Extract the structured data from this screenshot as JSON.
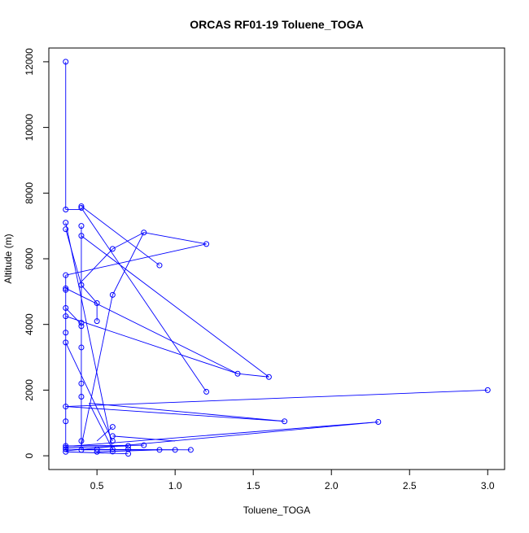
{
  "chart_data": {
    "type": "line",
    "title": "ORCAS RF01-19 Toluene_TOGA",
    "xlabel": "Toluene_TOGA",
    "ylabel": "Altitude (m)",
    "xlim": [
      0.3,
      3.0
    ],
    "ylim": [
      0,
      12000
    ],
    "x_ticks": [
      "0.5",
      "1.0",
      "1.5",
      "2.0",
      "2.5",
      "3.0"
    ],
    "y_ticks": [
      "0",
      "2000",
      "4000",
      "6000",
      "8000",
      "10000",
      "12000"
    ],
    "grid": false,
    "legend": "none",
    "markers": "open-circle",
    "color": "#0000ff",
    "series": [
      {
        "points": [
          [
            0.3,
            12000
          ],
          [
            0.3,
            7500
          ],
          [
            0.3,
            7100
          ],
          [
            0.3,
            6900
          ],
          [
            0.3,
            5500
          ],
          [
            0.3,
            5100
          ],
          [
            0.3,
            5050
          ],
          [
            0.3,
            4500
          ],
          [
            0.3,
            4250
          ],
          [
            0.3,
            3750
          ],
          [
            0.3,
            3450
          ],
          [
            0.3,
            1500
          ],
          [
            0.3,
            1050
          ],
          [
            0.3,
            300
          ],
          [
            0.3,
            250
          ],
          [
            0.3,
            200
          ],
          [
            0.3,
            120
          ],
          [
            0.4,
            180
          ],
          [
            0.4,
            450
          ],
          [
            0.4,
            1800
          ],
          [
            0.4,
            2200
          ],
          [
            0.4,
            3300
          ],
          [
            0.4,
            3950
          ],
          [
            0.4,
            4050
          ],
          [
            0.4,
            5200
          ],
          [
            0.4,
            6700
          ],
          [
            0.4,
            7000
          ],
          [
            0.4,
            7550
          ],
          [
            0.4,
            7600
          ],
          [
            0.5,
            4650
          ],
          [
            0.5,
            4100
          ],
          [
            0.5,
            200
          ],
          [
            0.5,
            120
          ],
          [
            0.6,
            4900
          ],
          [
            0.6,
            6300
          ],
          [
            0.6,
            880
          ],
          [
            0.6,
            600
          ],
          [
            0.6,
            450
          ],
          [
            0.6,
            200
          ],
          [
            0.6,
            130
          ],
          [
            0.7,
            300
          ],
          [
            0.7,
            200
          ],
          [
            0.7,
            60
          ],
          [
            0.8,
            6800
          ],
          [
            0.8,
            320
          ],
          [
            0.9,
            5800
          ],
          [
            0.9,
            180
          ],
          [
            1.0,
            180
          ],
          [
            1.1,
            180
          ],
          [
            1.2,
            6450
          ],
          [
            1.2,
            1950
          ],
          [
            1.4,
            2500
          ],
          [
            1.6,
            2400
          ],
          [
            1.7,
            1050
          ],
          [
            2.3,
            1030
          ],
          [
            3.0,
            2000
          ]
        ],
        "segments": [
          [
            [
              0.3,
              12000
            ],
            [
              0.3,
              7500
            ]
          ],
          [
            [
              0.3,
              7500
            ],
            [
              0.4,
              7500
            ]
          ],
          [
            [
              0.4,
              7600
            ],
            [
              0.9,
              5800
            ]
          ],
          [
            [
              0.4,
              7550
            ],
            [
              1.2,
              1950
            ]
          ],
          [
            [
              0.4,
              7000
            ],
            [
              0.4,
              4050
            ]
          ],
          [
            [
              0.4,
              6700
            ],
            [
              1.6,
              2400
            ]
          ],
          [
            [
              0.3,
              6900
            ],
            [
              0.4,
              5200
            ]
          ],
          [
            [
              0.3,
              7100
            ],
            [
              0.6,
              200
            ]
          ],
          [
            [
              0.3,
              5500
            ],
            [
              1.2,
              6450
            ]
          ],
          [
            [
              1.2,
              6450
            ],
            [
              0.8,
              6800
            ]
          ],
          [
            [
              0.8,
              6800
            ],
            [
              0.6,
              6300
            ]
          ],
          [
            [
              0.6,
              6300
            ],
            [
              0.4,
              5300
            ]
          ],
          [
            [
              0.3,
              5500
            ],
            [
              0.3,
              200
            ]
          ],
          [
            [
              0.3,
              5100
            ],
            [
              1.4,
              2500
            ]
          ],
          [
            [
              1.4,
              2500
            ],
            [
              1.6,
              2400
            ]
          ],
          [
            [
              0.3,
              4500
            ],
            [
              0.4,
              4000
            ]
          ],
          [
            [
              0.3,
              4250
            ],
            [
              1.4,
              2500
            ]
          ],
          [
            [
              0.4,
              5200
            ],
            [
              0.5,
              4650
            ]
          ],
          [
            [
              0.5,
              4650
            ],
            [
              0.5,
              4100
            ]
          ],
          [
            [
              0.4,
              4050
            ],
            [
              0.4,
              180
            ]
          ],
          [
            [
              0.3,
              3450
            ],
            [
              0.6,
              450
            ]
          ],
          [
            [
              0.6,
              4900
            ],
            [
              0.8,
              6800
            ]
          ],
          [
            [
              0.6,
              4900
            ],
            [
              0.4,
              300
            ]
          ],
          [
            [
              0.3,
              1500
            ],
            [
              3.0,
              2000
            ]
          ],
          [
            [
              0.3,
              1500
            ],
            [
              1.7,
              1050
            ]
          ],
          [
            [
              1.7,
              1050
            ],
            [
              0.45,
              1600
            ]
          ],
          [
            [
              0.45,
              1600
            ],
            [
              0.6,
              200
            ]
          ],
          [
            [
              2.3,
              1030
            ],
            [
              0.35,
              300
            ]
          ],
          [
            [
              0.6,
              600
            ],
            [
              1.0,
              450
            ]
          ],
          [
            [
              0.3,
              300
            ],
            [
              0.8,
              320
            ]
          ],
          [
            [
              0.6,
              880
            ],
            [
              0.5,
              450
            ]
          ],
          [
            [
              0.3,
              200
            ],
            [
              1.1,
              180
            ]
          ],
          [
            [
              0.3,
              250
            ],
            [
              0.7,
              300
            ]
          ],
          [
            [
              0.3,
              120
            ],
            [
              0.7,
              60
            ]
          ],
          [
            [
              0.4,
              180
            ],
            [
              1.0,
              180
            ]
          ],
          [
            [
              0.5,
              120
            ],
            [
              0.9,
              180
            ]
          ],
          [
            [
              0.3,
              150
            ],
            [
              2.3,
              1030
            ]
          ]
        ]
      }
    ]
  }
}
